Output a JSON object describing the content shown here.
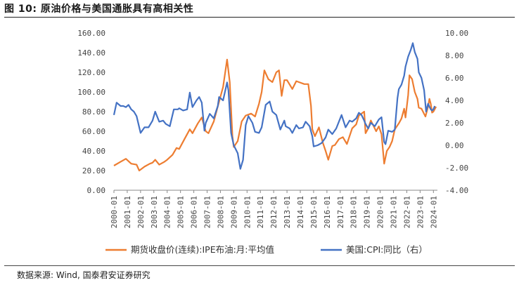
{
  "figure": {
    "title": "图 10:  原油价格与美国通胀具有高相关性",
    "source": "数据来源:  Wind, 国泰君安证券研究"
  },
  "chart_data": {
    "type": "line",
    "y_left": {
      "min": 0,
      "max": 160,
      "step": 20,
      "ticks": [
        "0.00",
        "20.00",
        "40.00",
        "60.00",
        "80.00",
        "100.00",
        "120.00",
        "140.00",
        "160.00"
      ]
    },
    "y_right": {
      "min": -4,
      "max": 10,
      "step": 2,
      "ticks": [
        "-4.00",
        "-2.00",
        "0.00",
        "2.00",
        "4.00",
        "6.00",
        "8.00",
        "10.00"
      ]
    },
    "x_ticks": [
      "2000-01",
      "2001-01",
      "2002-01",
      "2003-01",
      "2004-01",
      "2005-01",
      "2006-01",
      "2007-01",
      "2008-01",
      "2009-01",
      "2010-01",
      "2011-01",
      "2012-01",
      "2013-01",
      "2014-01",
      "2015-01",
      "2016-01",
      "2017-01",
      "2018-01",
      "2019-01",
      "2020-01",
      "2021-01",
      "2022-01",
      "2023-01",
      "2024-01"
    ],
    "grid": false,
    "legend_position": "bottom",
    "series": [
      {
        "name": "期货收盘价(连续):IPE布油:月:平均值",
        "axis": "left",
        "color": "#ED7D31",
        "points": [
          [
            2000.0,
            25
          ],
          [
            2000.5,
            29
          ],
          [
            2000.9,
            32
          ],
          [
            2001.3,
            27
          ],
          [
            2001.7,
            26
          ],
          [
            2001.9,
            20
          ],
          [
            2002.3,
            24
          ],
          [
            2002.7,
            27
          ],
          [
            2002.9,
            28
          ],
          [
            2003.1,
            31
          ],
          [
            2003.4,
            26
          ],
          [
            2003.8,
            29
          ],
          [
            2004.0,
            31
          ],
          [
            2004.4,
            36
          ],
          [
            2004.7,
            43
          ],
          [
            2004.9,
            42
          ],
          [
            2005.3,
            52
          ],
          [
            2005.7,
            62
          ],
          [
            2005.9,
            58
          ],
          [
            2006.3,
            68
          ],
          [
            2006.6,
            74
          ],
          [
            2006.9,
            60
          ],
          [
            2007.1,
            58
          ],
          [
            2007.5,
            70
          ],
          [
            2007.9,
            90
          ],
          [
            2008.2,
            105
          ],
          [
            2008.5,
            133
          ],
          [
            2008.7,
            110
          ],
          [
            2008.9,
            55
          ],
          [
            2009.0,
            44
          ],
          [
            2009.3,
            50
          ],
          [
            2009.6,
            70
          ],
          [
            2009.9,
            76
          ],
          [
            2010.3,
            78
          ],
          [
            2010.6,
            75
          ],
          [
            2010.9,
            88
          ],
          [
            2011.1,
            100
          ],
          [
            2011.3,
            122
          ],
          [
            2011.6,
            113
          ],
          [
            2011.9,
            110
          ],
          [
            2012.2,
            120
          ],
          [
            2012.4,
            122
          ],
          [
            2012.6,
            96
          ],
          [
            2012.8,
            112
          ],
          [
            2013.0,
            112
          ],
          [
            2013.4,
            103
          ],
          [
            2013.7,
            111
          ],
          [
            2013.9,
            110
          ],
          [
            2014.3,
            108
          ],
          [
            2014.6,
            108
          ],
          [
            2014.8,
            86
          ],
          [
            2014.9,
            62
          ],
          [
            2015.1,
            55
          ],
          [
            2015.4,
            64
          ],
          [
            2015.7,
            48
          ],
          [
            2015.9,
            40
          ],
          [
            2016.1,
            31
          ],
          [
            2016.4,
            45
          ],
          [
            2016.6,
            46
          ],
          [
            2016.9,
            52
          ],
          [
            2017.2,
            54
          ],
          [
            2017.5,
            47
          ],
          [
            2017.9,
            63
          ],
          [
            2018.2,
            67
          ],
          [
            2018.4,
            76
          ],
          [
            2018.8,
            80
          ],
          [
            2018.9,
            58
          ],
          [
            2019.1,
            63
          ],
          [
            2019.3,
            71
          ],
          [
            2019.7,
            60
          ],
          [
            2019.9,
            65
          ],
          [
            2020.1,
            57
          ],
          [
            2020.3,
            27
          ],
          [
            2020.5,
            40
          ],
          [
            2020.7,
            44
          ],
          [
            2020.9,
            50
          ],
          [
            2021.1,
            62
          ],
          [
            2021.4,
            68
          ],
          [
            2021.6,
            73
          ],
          [
            2021.8,
            83
          ],
          [
            2021.9,
            74
          ],
          [
            2022.1,
            97
          ],
          [
            2022.2,
            117
          ],
          [
            2022.4,
            113
          ],
          [
            2022.6,
            100
          ],
          [
            2022.8,
            93
          ],
          [
            2022.9,
            84
          ],
          [
            2023.1,
            83
          ],
          [
            2023.4,
            75
          ],
          [
            2023.6,
            85
          ],
          [
            2023.7,
            93
          ],
          [
            2023.8,
            88
          ],
          [
            2023.9,
            79
          ],
          [
            2024.0,
            80
          ],
          [
            2024.2,
            85
          ]
        ]
      },
      {
        "name": "美国:CPI:同比（右）",
        "axis": "right",
        "color": "#4472C4",
        "points": [
          [
            2000.0,
            2.7
          ],
          [
            2000.2,
            3.8
          ],
          [
            2000.5,
            3.5
          ],
          [
            2000.7,
            3.5
          ],
          [
            2000.9,
            3.4
          ],
          [
            2001.1,
            3.6
          ],
          [
            2001.3,
            3.2
          ],
          [
            2001.5,
            3.0
          ],
          [
            2001.7,
            2.6
          ],
          [
            2001.9,
            1.6
          ],
          [
            2002.0,
            1.1
          ],
          [
            2002.3,
            1.6
          ],
          [
            2002.6,
            1.6
          ],
          [
            2002.9,
            2.2
          ],
          [
            2003.1,
            3.0
          ],
          [
            2003.4,
            2.1
          ],
          [
            2003.7,
            2.2
          ],
          [
            2003.9,
            1.9
          ],
          [
            2004.2,
            1.7
          ],
          [
            2004.5,
            3.2
          ],
          [
            2004.8,
            3.2
          ],
          [
            2004.9,
            3.3
          ],
          [
            2005.2,
            3.1
          ],
          [
            2005.5,
            3.2
          ],
          [
            2005.7,
            4.7
          ],
          [
            2005.9,
            3.4
          ],
          [
            2006.2,
            4.0
          ],
          [
            2006.4,
            4.3
          ],
          [
            2006.6,
            3.8
          ],
          [
            2006.8,
            1.3
          ],
          [
            2006.9,
            2.0
          ],
          [
            2007.2,
            2.8
          ],
          [
            2007.5,
            2.4
          ],
          [
            2007.8,
            3.5
          ],
          [
            2007.9,
            4.3
          ],
          [
            2008.2,
            4.0
          ],
          [
            2008.5,
            5.6
          ],
          [
            2008.6,
            4.9
          ],
          [
            2008.8,
            1.1
          ],
          [
            2009.0,
            0.0
          ],
          [
            2009.3,
            -0.7
          ],
          [
            2009.5,
            -2.1
          ],
          [
            2009.7,
            -1.3
          ],
          [
            2009.9,
            1.8
          ],
          [
            2010.1,
            2.6
          ],
          [
            2010.4,
            2.0
          ],
          [
            2010.6,
            1.2
          ],
          [
            2010.9,
            1.1
          ],
          [
            2011.1,
            1.6
          ],
          [
            2011.4,
            3.6
          ],
          [
            2011.7,
            3.9
          ],
          [
            2011.9,
            3.0
          ],
          [
            2012.2,
            2.7
          ],
          [
            2012.5,
            1.4
          ],
          [
            2012.8,
            2.2
          ],
          [
            2012.9,
            1.7
          ],
          [
            2013.2,
            1.5
          ],
          [
            2013.4,
            1.1
          ],
          [
            2013.7,
            1.8
          ],
          [
            2013.9,
            1.5
          ],
          [
            2014.2,
            1.6
          ],
          [
            2014.4,
            2.1
          ],
          [
            2014.7,
            1.7
          ],
          [
            2014.9,
            0.8
          ],
          [
            2015.0,
            -0.1
          ],
          [
            2015.3,
            0.0
          ],
          [
            2015.6,
            0.2
          ],
          [
            2015.9,
            0.7
          ],
          [
            2016.1,
            1.4
          ],
          [
            2016.4,
            1.0
          ],
          [
            2016.7,
            1.5
          ],
          [
            2016.9,
            2.1
          ],
          [
            2017.1,
            2.7
          ],
          [
            2017.4,
            1.6
          ],
          [
            2017.7,
            2.2
          ],
          [
            2017.9,
            2.1
          ],
          [
            2018.2,
            2.4
          ],
          [
            2018.4,
            2.9
          ],
          [
            2018.6,
            2.7
          ],
          [
            2018.8,
            2.2
          ],
          [
            2018.9,
            1.9
          ],
          [
            2019.1,
            1.5
          ],
          [
            2019.3,
            2.0
          ],
          [
            2019.6,
            1.7
          ],
          [
            2019.9,
            2.3
          ],
          [
            2020.1,
            2.5
          ],
          [
            2020.3,
            0.3
          ],
          [
            2020.4,
            0.1
          ],
          [
            2020.6,
            1.3
          ],
          [
            2020.9,
            1.2
          ],
          [
            2021.1,
            1.4
          ],
          [
            2021.3,
            4.2
          ],
          [
            2021.4,
            5.0
          ],
          [
            2021.6,
            5.4
          ],
          [
            2021.8,
            6.2
          ],
          [
            2021.9,
            7.0
          ],
          [
            2022.1,
            7.9
          ],
          [
            2022.3,
            8.5
          ],
          [
            2022.45,
            9.1
          ],
          [
            2022.6,
            8.3
          ],
          [
            2022.8,
            7.7
          ],
          [
            2022.9,
            6.5
          ],
          [
            2023.1,
            6.0
          ],
          [
            2023.3,
            4.9
          ],
          [
            2023.45,
            3.0
          ],
          [
            2023.6,
            3.7
          ],
          [
            2023.8,
            3.2
          ],
          [
            2023.9,
            3.1
          ],
          [
            2024.0,
            3.2
          ],
          [
            2024.1,
            3.5
          ]
        ]
      }
    ]
  }
}
